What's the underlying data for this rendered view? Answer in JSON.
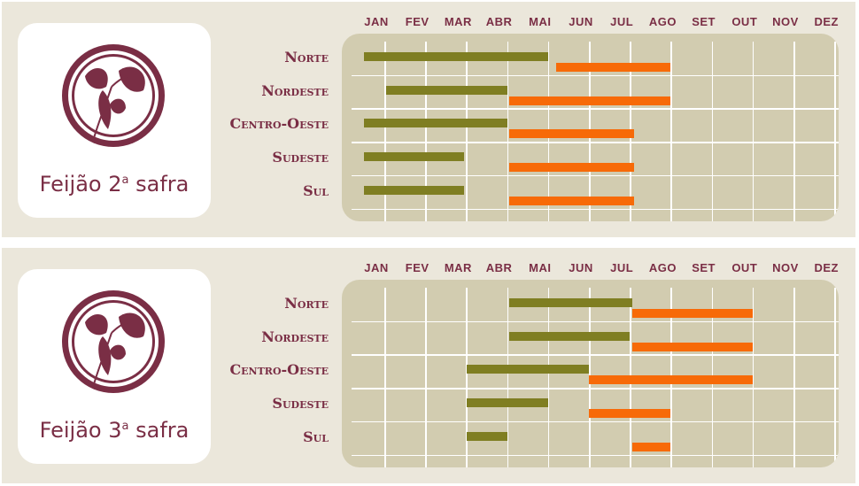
{
  "months": [
    "JAN",
    "FEV",
    "MAR",
    "ABR",
    "MAI",
    "JUN",
    "JUL",
    "AGO",
    "SET",
    "OUT",
    "NOV",
    "DEZ"
  ],
  "colors": {
    "accent": "#7a2e45",
    "green_bar": "#7f7e22",
    "orange_bar": "#f76a08",
    "grid": "#d2ccb0",
    "panel": "#ebe7db"
  },
  "panels": [
    {
      "title_main": "Feijão 2",
      "title_sup": "a",
      "title_suffix": " safra",
      "icon": "bean-plant-icon",
      "regions": [
        {
          "name": "Norte",
          "green": [
            0.0,
            4.5
          ],
          "orange": [
            4.7,
            7.5
          ]
        },
        {
          "name": "Nordeste",
          "green": [
            0.55,
            3.5
          ],
          "orange": [
            3.55,
            7.5
          ]
        },
        {
          "name": "Centro-Oeste",
          "green": [
            0.0,
            3.5
          ],
          "orange": [
            3.55,
            6.6
          ]
        },
        {
          "name": "Sudeste",
          "green": [
            0.0,
            2.45
          ],
          "orange": [
            3.55,
            6.6
          ]
        },
        {
          "name": "Sul",
          "green": [
            0.0,
            2.45
          ],
          "orange": [
            3.55,
            6.6
          ]
        }
      ]
    },
    {
      "title_main": "Feijão 3",
      "title_sup": "a",
      "title_suffix": " safra",
      "icon": "bean-plant-icon",
      "regions": [
        {
          "name": "Norte",
          "green": [
            3.55,
            6.55
          ],
          "orange": [
            6.55,
            9.5
          ]
        },
        {
          "name": "Nordeste",
          "green": [
            3.55,
            6.5
          ],
          "orange": [
            6.55,
            9.5
          ]
        },
        {
          "name": "Centro-Oeste",
          "green": [
            2.5,
            5.5
          ],
          "orange": [
            5.5,
            9.5
          ]
        },
        {
          "name": "Sudeste",
          "green": [
            2.5,
            4.5
          ],
          "orange": [
            5.5,
            7.5
          ]
        },
        {
          "name": "Sul",
          "green": [
            2.5,
            3.5
          ],
          "orange": [
            6.55,
            7.5
          ]
        }
      ]
    }
  ]
}
